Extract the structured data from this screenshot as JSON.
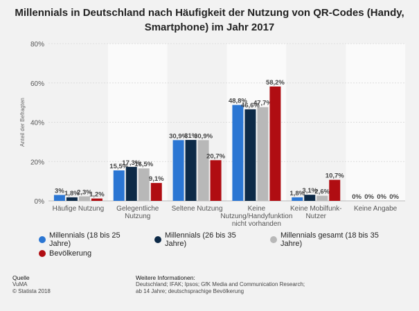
{
  "title_line1": "Millennials in Deutschland nach Häufigkeit der Nutzung von QR-Codes (Handy,",
  "title_line2": "Smartphone) im Jahr 2017",
  "chart_data": {
    "type": "bar",
    "ylabel": "Anteil der Befragten",
    "ylim": [
      0,
      80
    ],
    "yticks": [
      "0%",
      "20%",
      "40%",
      "60%",
      "80%"
    ],
    "categories": [
      [
        "Häufige Nutzung"
      ],
      [
        "Gelegentliche",
        "Nutzung"
      ],
      [
        "Seltene Nutzung"
      ],
      [
        "Keine",
        "Nutzung/Handyfunktion",
        "nicht vorhanden"
      ],
      [
        "Keine Mobilfunk-",
        "Nutzer"
      ],
      [
        "Keine Angabe"
      ]
    ],
    "series": [
      {
        "name": "Millennials (18 bis 25 Jahre)",
        "color": "#2b76d3",
        "values": [
          3,
          15.5,
          30.9,
          48.8,
          1.8,
          0
        ],
        "labels": [
          "3%",
          "15,5%",
          "30,9%",
          "48,8%",
          "1,8%",
          "0%"
        ]
      },
      {
        "name": "Millennials (26 bis 35 Jahre)",
        "color": "#0d2a47",
        "values": [
          1.8,
          17.3,
          31,
          46.6,
          3.1,
          0
        ],
        "labels": [
          "1,8%",
          "17,3%",
          "31%",
          "46,6%",
          "3,1%",
          "0%"
        ]
      },
      {
        "name": "Millennials gesamt (18 bis 35 Jahre)",
        "color": "#b8b8b8",
        "values": [
          2.3,
          16.5,
          30.9,
          47.7,
          2.6,
          0
        ],
        "labels": [
          "2,3%",
          "16,5%",
          "30,9%",
          "47,7%",
          "2,6%",
          "0%"
        ]
      },
      {
        "name": "Bevölkerung",
        "color": "#b00d12",
        "values": [
          1.2,
          9.1,
          20.7,
          58.2,
          10.7,
          0
        ],
        "labels": [
          "1,2%",
          "9,1%",
          "20,7%",
          "58,2%",
          "10,7%",
          "0%"
        ]
      }
    ],
    "grid": true,
    "legend": "bottom"
  },
  "footer": {
    "source_heading": "Quelle",
    "source_lines": [
      "VuMA",
      "© Statista 2018"
    ],
    "info_heading": "Weitere Informationen:",
    "info_lines": [
      "Deutschland; IFAK; Ipsos; GfK Media and Communication Research;",
      "ab 14 Jahre; deutschsprachige Bevölkerung"
    ]
  }
}
